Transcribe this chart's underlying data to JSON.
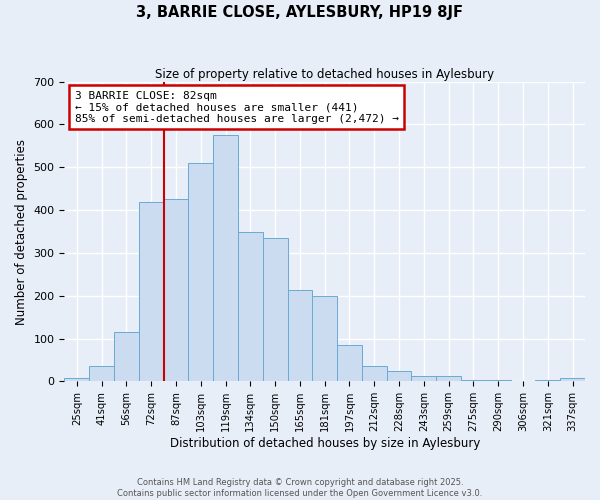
{
  "title": "3, BARRIE CLOSE, AYLESBURY, HP19 8JF",
  "subtitle": "Size of property relative to detached houses in Aylesbury",
  "xlabel": "Distribution of detached houses by size in Aylesbury",
  "ylabel": "Number of detached properties",
  "bar_labels": [
    "25sqm",
    "41sqm",
    "56sqm",
    "72sqm",
    "87sqm",
    "103sqm",
    "119sqm",
    "134sqm",
    "150sqm",
    "165sqm",
    "181sqm",
    "197sqm",
    "212sqm",
    "228sqm",
    "243sqm",
    "259sqm",
    "275sqm",
    "290sqm",
    "306sqm",
    "321sqm",
    "337sqm"
  ],
  "bar_values": [
    8,
    35,
    115,
    420,
    425,
    510,
    575,
    348,
    335,
    213,
    200,
    85,
    35,
    25,
    12,
    12,
    2,
    2,
    0,
    2,
    8
  ],
  "bar_color": "#ccdcf0",
  "bar_edge_color": "#6aaad4",
  "annotation_title": "3 BARRIE CLOSE: 82sqm",
  "annotation_line1": "← 15% of detached houses are smaller (441)",
  "annotation_line2": "85% of semi-detached houses are larger (2,472) →",
  "annotation_box_facecolor": "#ffffff",
  "annotation_box_edgecolor": "#cc0000",
  "vline_color": "#cc0000",
  "vline_x_label": "87sqm",
  "ylim": [
    0,
    700
  ],
  "yticks": [
    0,
    100,
    200,
    300,
    400,
    500,
    600,
    700
  ],
  "background_color": "#e8eef8",
  "grid_color": "#ffffff",
  "footer1": "Contains HM Land Registry data © Crown copyright and database right 2025.",
  "footer2": "Contains public sector information licensed under the Open Government Licence v3.0.",
  "bin_width": 16
}
